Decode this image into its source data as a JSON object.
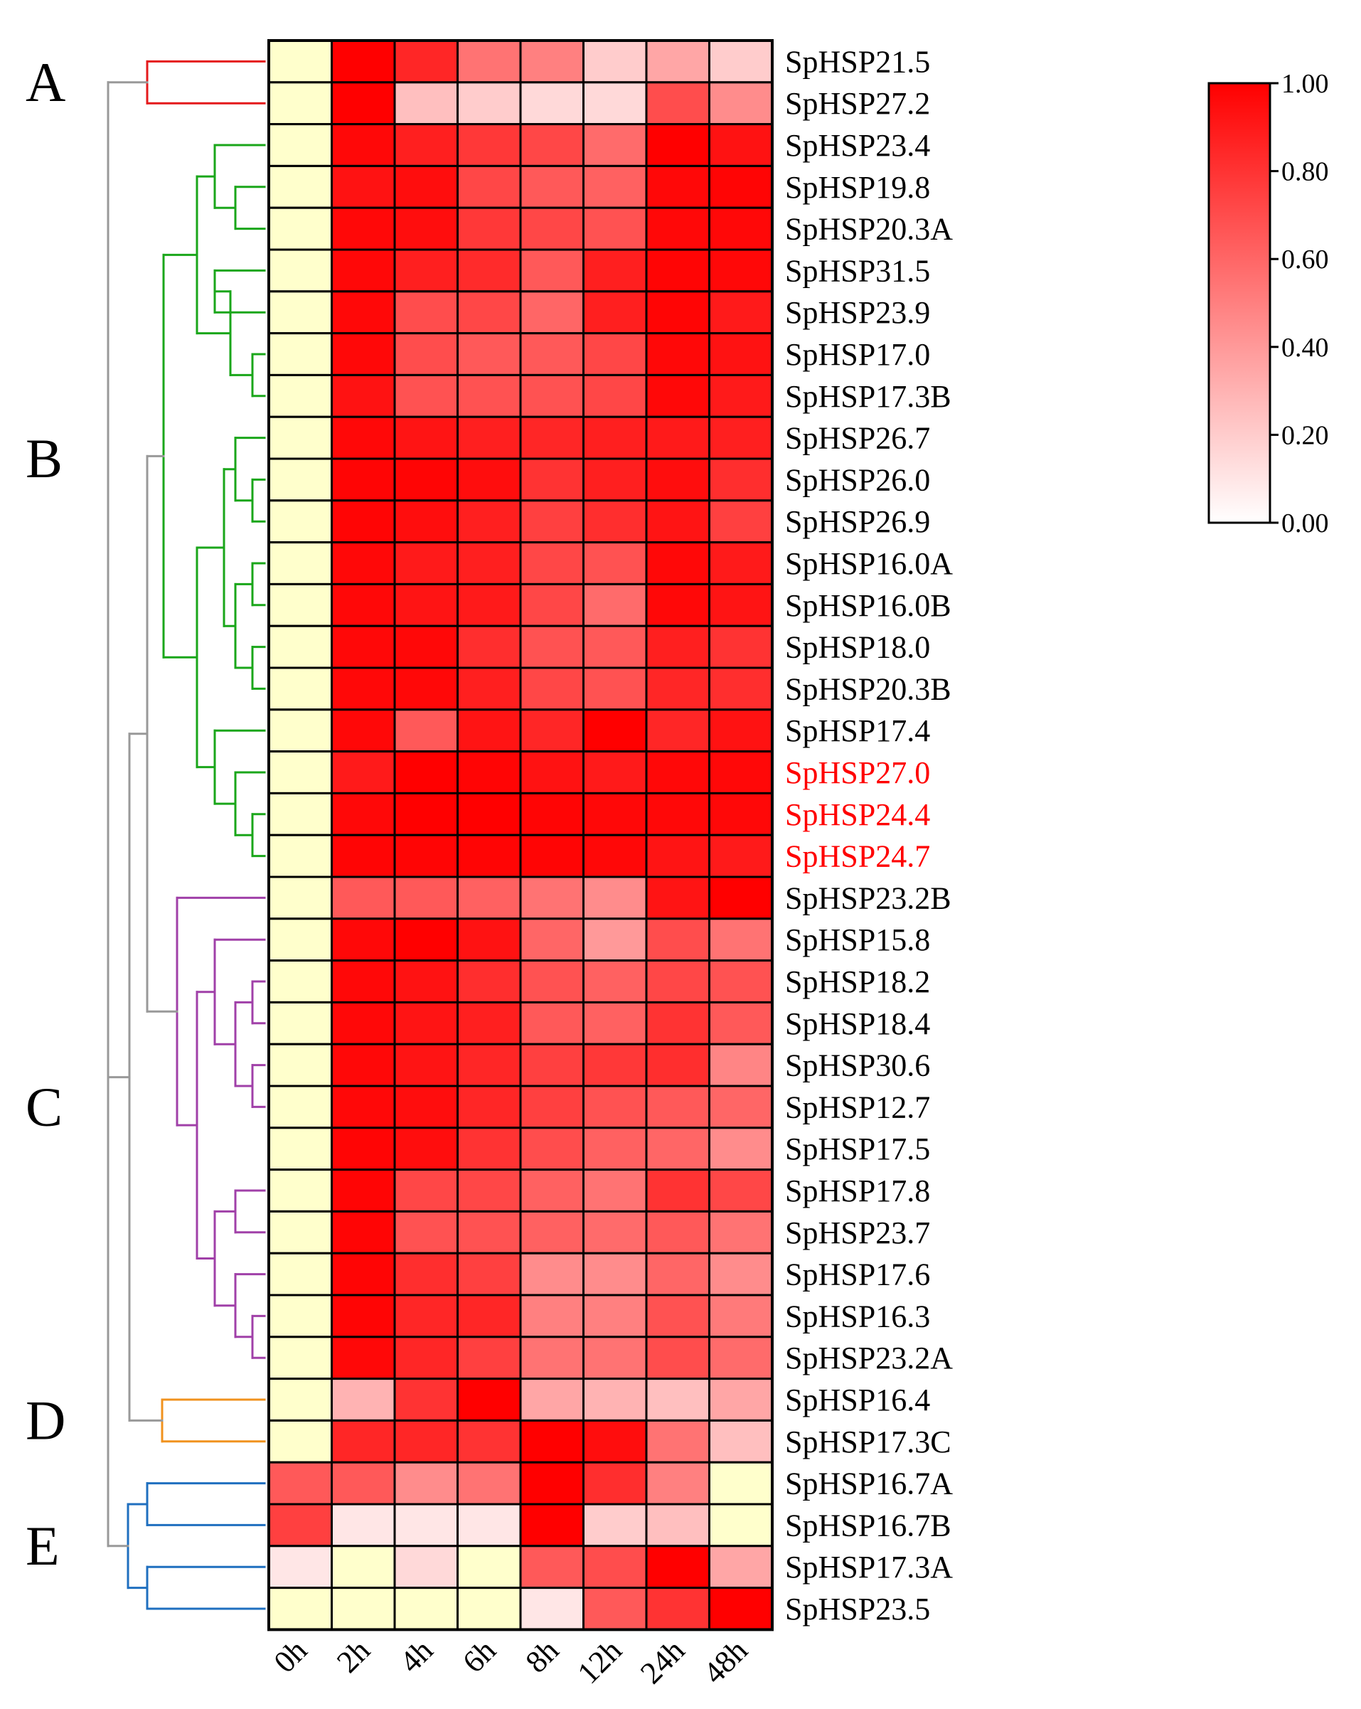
{
  "chart_data": {
    "type": "heatmap",
    "columns": [
      "0h",
      "2h",
      "4h",
      "6h",
      "8h",
      "12h",
      "24h",
      "48h"
    ],
    "rows": [
      {
        "name": "SpHSP21.5",
        "values": [
          0.05,
          1.0,
          0.85,
          0.55,
          0.5,
          0.2,
          0.35,
          0.2
        ],
        "highlight": false
      },
      {
        "name": "SpHSP27.2",
        "values": [
          0.05,
          1.0,
          0.25,
          0.2,
          0.15,
          0.15,
          0.7,
          0.45
        ],
        "highlight": false
      },
      {
        "name": "SpHSP23.4",
        "values": [
          0.05,
          0.97,
          0.88,
          0.78,
          0.72,
          0.58,
          1.0,
          0.93
        ],
        "highlight": false
      },
      {
        "name": "SpHSP19.8",
        "values": [
          0.05,
          0.93,
          0.95,
          0.72,
          0.65,
          0.62,
          0.97,
          0.98
        ],
        "highlight": false
      },
      {
        "name": "SpHSP20.3A",
        "values": [
          0.05,
          0.97,
          0.95,
          0.78,
          0.72,
          0.68,
          0.97,
          0.97
        ],
        "highlight": false
      },
      {
        "name": "SpHSP31.5",
        "values": [
          0.05,
          0.97,
          0.88,
          0.83,
          0.65,
          0.88,
          0.98,
          0.97
        ],
        "highlight": false
      },
      {
        "name": "SpHSP23.9",
        "values": [
          0.05,
          0.97,
          0.7,
          0.72,
          0.6,
          0.88,
          0.98,
          0.9
        ],
        "highlight": false
      },
      {
        "name": "SpHSP17.0",
        "values": [
          0.05,
          0.97,
          0.7,
          0.65,
          0.65,
          0.72,
          0.97,
          0.93
        ],
        "highlight": false
      },
      {
        "name": "SpHSP17.3B",
        "values": [
          0.05,
          0.93,
          0.68,
          0.68,
          0.68,
          0.72,
          0.97,
          0.9
        ],
        "highlight": false
      },
      {
        "name": "SpHSP26.7",
        "values": [
          0.05,
          0.97,
          0.92,
          0.88,
          0.85,
          0.88,
          0.9,
          0.88
        ],
        "highlight": false
      },
      {
        "name": "SpHSP26.0",
        "values": [
          0.05,
          0.98,
          0.98,
          0.95,
          0.8,
          0.88,
          0.95,
          0.82
        ],
        "highlight": false
      },
      {
        "name": "SpHSP26.9",
        "values": [
          0.05,
          0.98,
          0.95,
          0.88,
          0.75,
          0.82,
          0.92,
          0.75
        ],
        "highlight": false
      },
      {
        "name": "SpHSP16.0A",
        "values": [
          0.05,
          0.97,
          0.9,
          0.88,
          0.72,
          0.68,
          0.97,
          0.9
        ],
        "highlight": false
      },
      {
        "name": "SpHSP16.0B",
        "values": [
          0.05,
          0.97,
          0.92,
          0.9,
          0.72,
          0.58,
          0.97,
          0.92
        ],
        "highlight": false
      },
      {
        "name": "SpHSP18.0",
        "values": [
          0.05,
          0.97,
          0.97,
          0.82,
          0.68,
          0.65,
          0.88,
          0.8
        ],
        "highlight": false
      },
      {
        "name": "SpHSP20.3B",
        "values": [
          0.05,
          0.97,
          0.97,
          0.88,
          0.72,
          0.68,
          0.85,
          0.82
        ],
        "highlight": false
      },
      {
        "name": "SpHSP17.4",
        "values": [
          0.05,
          0.97,
          0.65,
          0.92,
          0.85,
          1.0,
          0.85,
          0.93
        ],
        "highlight": false
      },
      {
        "name": "SpHSP27.0",
        "values": [
          0.05,
          0.9,
          1.0,
          0.98,
          0.93,
          0.9,
          0.97,
          0.97
        ],
        "highlight": true
      },
      {
        "name": "SpHSP24.4",
        "values": [
          0.05,
          0.97,
          1.0,
          1.0,
          0.98,
          0.97,
          0.97,
          0.97
        ],
        "highlight": true
      },
      {
        "name": "SpHSP24.7",
        "values": [
          0.05,
          0.98,
          0.98,
          0.98,
          0.98,
          0.97,
          0.92,
          0.9
        ],
        "highlight": true
      },
      {
        "name": "SpHSP23.2B",
        "values": [
          0.05,
          0.65,
          0.65,
          0.62,
          0.55,
          0.45,
          0.92,
          1.0
        ],
        "highlight": false
      },
      {
        "name": "SpHSP15.8",
        "values": [
          0.05,
          0.97,
          1.0,
          0.93,
          0.6,
          0.4,
          0.7,
          0.55
        ],
        "highlight": false
      },
      {
        "name": "SpHSP18.2",
        "values": [
          0.05,
          0.97,
          0.93,
          0.82,
          0.68,
          0.62,
          0.72,
          0.68
        ],
        "highlight": false
      },
      {
        "name": "SpHSP18.4",
        "values": [
          0.05,
          0.97,
          0.92,
          0.88,
          0.65,
          0.62,
          0.8,
          0.65
        ],
        "highlight": false
      },
      {
        "name": "SpHSP30.6",
        "values": [
          0.05,
          0.97,
          0.92,
          0.85,
          0.75,
          0.78,
          0.82,
          0.48
        ],
        "highlight": false
      },
      {
        "name": "SpHSP12.7",
        "values": [
          0.05,
          0.97,
          0.95,
          0.85,
          0.75,
          0.68,
          0.65,
          0.6
        ],
        "highlight": false
      },
      {
        "name": "SpHSP17.5",
        "values": [
          0.05,
          0.98,
          0.95,
          0.8,
          0.7,
          0.62,
          0.6,
          0.45
        ],
        "highlight": false
      },
      {
        "name": "SpHSP17.8",
        "values": [
          0.05,
          0.98,
          0.72,
          0.72,
          0.62,
          0.55,
          0.8,
          0.72
        ],
        "highlight": false
      },
      {
        "name": "SpHSP23.7",
        "values": [
          0.05,
          0.98,
          0.68,
          0.68,
          0.62,
          0.58,
          0.65,
          0.55
        ],
        "highlight": false
      },
      {
        "name": "SpHSP17.6",
        "values": [
          0.05,
          0.98,
          0.82,
          0.75,
          0.45,
          0.45,
          0.6,
          0.45
        ],
        "highlight": false
      },
      {
        "name": "SpHSP16.3",
        "values": [
          0.05,
          0.98,
          0.85,
          0.85,
          0.5,
          0.5,
          0.68,
          0.52
        ],
        "highlight": false
      },
      {
        "name": "SpHSP23.2A",
        "values": [
          0.05,
          0.97,
          0.85,
          0.75,
          0.55,
          0.55,
          0.7,
          0.58
        ],
        "highlight": false
      },
      {
        "name": "SpHSP16.4",
        "values": [
          0.05,
          0.3,
          0.8,
          1.0,
          0.35,
          0.3,
          0.25,
          0.35
        ],
        "highlight": false
      },
      {
        "name": "SpHSP17.3C",
        "values": [
          0.05,
          0.85,
          0.85,
          0.8,
          1.0,
          0.95,
          0.55,
          0.25
        ],
        "highlight": false
      },
      {
        "name": "SpHSP16.7A",
        "values": [
          0.65,
          0.65,
          0.45,
          0.55,
          1.0,
          0.82,
          0.5,
          0.05
        ],
        "highlight": false
      },
      {
        "name": "SpHSP16.7B",
        "values": [
          0.75,
          0.1,
          0.1,
          0.1,
          1.0,
          0.2,
          0.25,
          0.05
        ],
        "highlight": false
      },
      {
        "name": "SpHSP17.3A",
        "values": [
          0.1,
          0.05,
          0.15,
          0.05,
          0.65,
          0.7,
          1.0,
          0.35
        ],
        "highlight": false
      },
      {
        "name": "SpHSP23.5",
        "values": [
          0.05,
          0.05,
          0.05,
          0.05,
          0.1,
          0.65,
          0.8,
          1.0
        ],
        "highlight": false
      }
    ],
    "clusters": [
      {
        "label": "A",
        "color": "#e41a1c"
      },
      {
        "label": "B",
        "color": "#1aa61a"
      },
      {
        "label": "C",
        "color": "#a040a8"
      },
      {
        "label": "D",
        "color": "#f0921e"
      },
      {
        "label": "E",
        "color": "#1f6fbf"
      }
    ],
    "colorbar": {
      "min": 0.0,
      "max": 1.0,
      "ticks": [
        "0.00",
        "0.20",
        "0.40",
        "0.60",
        "0.80",
        "1.00"
      ],
      "low_color": "#ffffff",
      "high_color": "#ff0000",
      "placement": "top-right"
    },
    "baseline_color": "#ffffcc",
    "highlight_label_color": "#ff0000",
    "dendrogram_trunk_color": "#999999"
  }
}
